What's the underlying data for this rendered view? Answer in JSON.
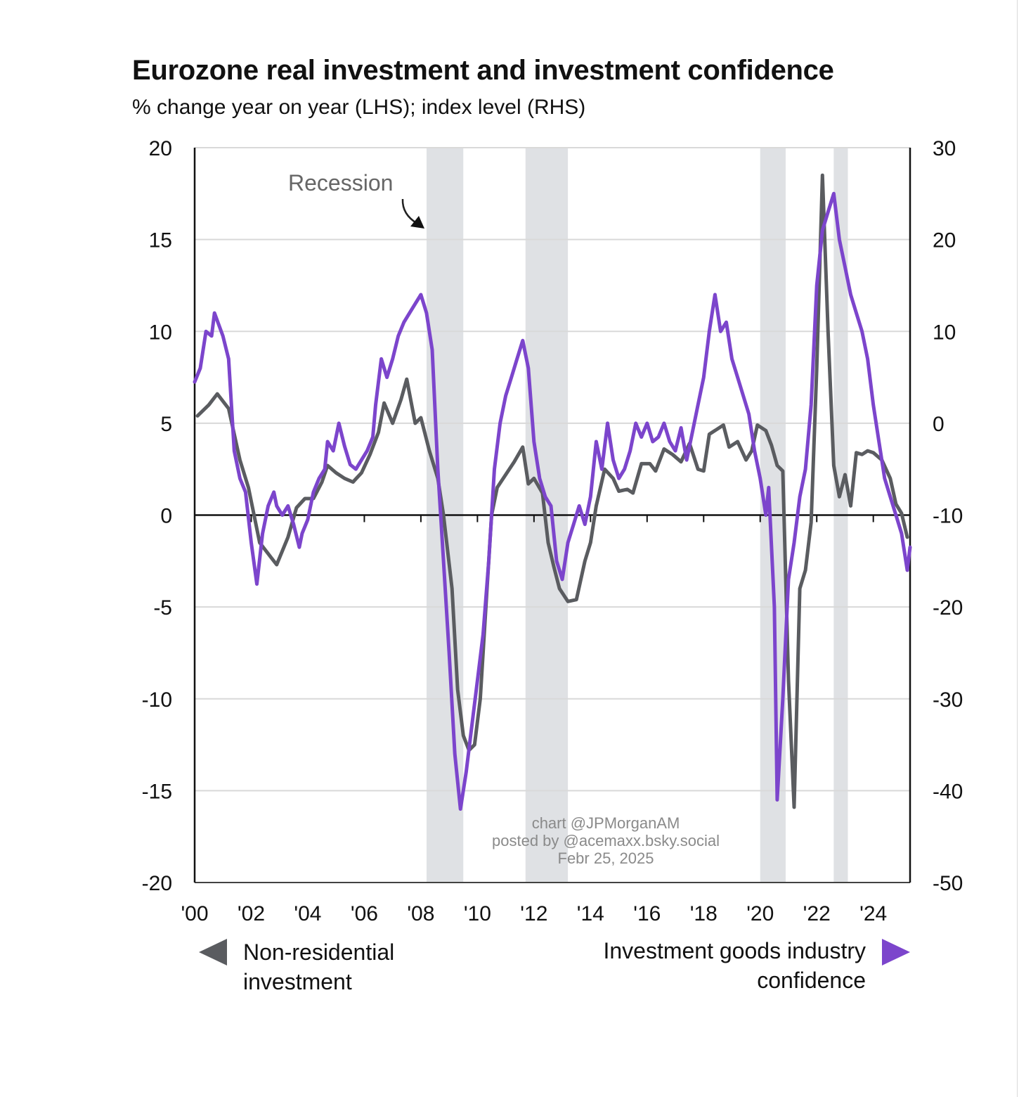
{
  "chart_data": {
    "type": "line",
    "title": "Eurozone real investment and investment confidence",
    "subtitle": "% change year on year (LHS); index level (RHS)",
    "x_axis": {
      "tick_labels": [
        "'00",
        "'02",
        "'04",
        "'06",
        "'08",
        "'10",
        "'12",
        "'14",
        "'16",
        "'18",
        "'20",
        "'22",
        "'24"
      ],
      "tick_years": [
        2000,
        2002,
        2004,
        2006,
        2008,
        2010,
        2012,
        2014,
        2016,
        2018,
        2020,
        2022,
        2024
      ],
      "range": [
        2000,
        2025.3
      ]
    },
    "y_left": {
      "ylim": [
        -20,
        20
      ],
      "ticks": [
        20,
        15,
        10,
        5,
        0,
        -5,
        -10,
        -15,
        -20
      ]
    },
    "y_right": {
      "ylim": [
        -50,
        30
      ],
      "ticks": [
        30,
        20,
        10,
        0,
        -10,
        -20,
        -30,
        -40,
        -50
      ]
    },
    "grid": true,
    "recessions": [
      [
        2008.2,
        2009.5
      ],
      [
        2011.7,
        2013.2
      ],
      [
        2020.0,
        2020.9
      ],
      [
        2022.6,
        2023.1
      ]
    ],
    "recession_label": "Recession",
    "series": [
      {
        "name": "Non-residential investment",
        "axis": "left",
        "color": "#5a5c60",
        "points": [
          [
            2000.1,
            5.4
          ],
          [
            2000.5,
            6.0
          ],
          [
            2000.8,
            6.6
          ],
          [
            2001.2,
            5.8
          ],
          [
            2001.6,
            3.0
          ],
          [
            2001.9,
            1.5
          ],
          [
            2002.3,
            -1.5
          ],
          [
            2002.7,
            -2.3
          ],
          [
            2002.9,
            -2.7
          ],
          [
            2003.3,
            -1.2
          ],
          [
            2003.6,
            0.4
          ],
          [
            2003.9,
            0.9
          ],
          [
            2004.2,
            0.9
          ],
          [
            2004.5,
            1.8
          ],
          [
            2004.7,
            2.7
          ],
          [
            2005.0,
            2.3
          ],
          [
            2005.3,
            2.0
          ],
          [
            2005.6,
            1.8
          ],
          [
            2005.9,
            2.3
          ],
          [
            2006.2,
            3.3
          ],
          [
            2006.5,
            4.5
          ],
          [
            2006.7,
            6.1
          ],
          [
            2007.0,
            5.0
          ],
          [
            2007.3,
            6.3
          ],
          [
            2007.5,
            7.4
          ],
          [
            2007.8,
            5.0
          ],
          [
            2008.0,
            5.3
          ],
          [
            2008.3,
            3.5
          ],
          [
            2008.6,
            2.0
          ],
          [
            2008.8,
            0.0
          ],
          [
            2009.1,
            -4.0
          ],
          [
            2009.3,
            -9.5
          ],
          [
            2009.5,
            -12.0
          ],
          [
            2009.7,
            -12.8
          ],
          [
            2009.9,
            -12.5
          ],
          [
            2010.1,
            -10.0
          ],
          [
            2010.3,
            -5.0
          ],
          [
            2010.5,
            0.0
          ],
          [
            2010.7,
            1.5
          ],
          [
            2011.0,
            2.2
          ],
          [
            2011.3,
            2.9
          ],
          [
            2011.6,
            3.7
          ],
          [
            2011.8,
            1.7
          ],
          [
            2012.0,
            2.0
          ],
          [
            2012.3,
            1.2
          ],
          [
            2012.5,
            -1.5
          ],
          [
            2012.7,
            -2.8
          ],
          [
            2012.9,
            -4.0
          ],
          [
            2013.2,
            -4.7
          ],
          [
            2013.5,
            -4.6
          ],
          [
            2013.8,
            -2.5
          ],
          [
            2014.0,
            -1.5
          ],
          [
            2014.2,
            0.5
          ],
          [
            2014.5,
            2.5
          ],
          [
            2014.8,
            2.0
          ],
          [
            2015.0,
            1.3
          ],
          [
            2015.3,
            1.4
          ],
          [
            2015.5,
            1.2
          ],
          [
            2015.8,
            2.8
          ],
          [
            2016.1,
            2.8
          ],
          [
            2016.3,
            2.4
          ],
          [
            2016.6,
            3.6
          ],
          [
            2016.9,
            3.3
          ],
          [
            2017.2,
            2.9
          ],
          [
            2017.5,
            3.9
          ],
          [
            2017.8,
            2.5
          ],
          [
            2018.0,
            2.4
          ],
          [
            2018.2,
            4.4
          ],
          [
            2018.5,
            4.7
          ],
          [
            2018.7,
            4.9
          ],
          [
            2018.9,
            3.7
          ],
          [
            2019.2,
            4.0
          ],
          [
            2019.5,
            3.0
          ],
          [
            2019.7,
            3.5
          ],
          [
            2019.9,
            4.9
          ],
          [
            2020.2,
            4.6
          ],
          [
            2020.4,
            3.8
          ],
          [
            2020.6,
            2.7
          ],
          [
            2020.8,
            2.4
          ],
          [
            2021.0,
            -9.0
          ],
          [
            2021.2,
            -15.9
          ],
          [
            2021.4,
            -4.0
          ],
          [
            2021.6,
            -3.0
          ],
          [
            2021.8,
            -0.4
          ],
          [
            2022.0,
            8.0
          ],
          [
            2022.2,
            18.5
          ],
          [
            2022.4,
            10.0
          ],
          [
            2022.6,
            2.7
          ],
          [
            2022.8,
            1.0
          ],
          [
            2023.0,
            2.2
          ],
          [
            2023.2,
            0.5
          ],
          [
            2023.4,
            3.4
          ],
          [
            2023.6,
            3.3
          ],
          [
            2023.8,
            3.5
          ],
          [
            2024.0,
            3.4
          ],
          [
            2024.3,
            3.0
          ],
          [
            2024.6,
            2.0
          ],
          [
            2024.8,
            0.6
          ],
          [
            2025.0,
            0.1
          ],
          [
            2025.2,
            -1.2
          ]
        ]
      },
      {
        "name": "Investment goods industry confidence",
        "axis": "right",
        "color": "#7c45cc",
        "points": [
          [
            2000.0,
            4.5
          ],
          [
            2000.2,
            6.0
          ],
          [
            2000.4,
            10.0
          ],
          [
            2000.6,
            9.5
          ],
          [
            2000.7,
            12.0
          ],
          [
            2001.0,
            9.5
          ],
          [
            2001.2,
            7.0
          ],
          [
            2001.4,
            -3.0
          ],
          [
            2001.6,
            -6.0
          ],
          [
            2001.8,
            -7.5
          ],
          [
            2002.0,
            -13.0
          ],
          [
            2002.2,
            -17.5
          ],
          [
            2002.4,
            -12.0
          ],
          [
            2002.6,
            -9.0
          ],
          [
            2002.8,
            -7.5
          ],
          [
            2002.9,
            -9.0
          ],
          [
            2003.1,
            -10.0
          ],
          [
            2003.3,
            -9.0
          ],
          [
            2003.5,
            -11.0
          ],
          [
            2003.7,
            -13.5
          ],
          [
            2003.8,
            -12.0
          ],
          [
            2004.0,
            -10.5
          ],
          [
            2004.2,
            -7.5
          ],
          [
            2004.4,
            -6.0
          ],
          [
            2004.6,
            -5.0
          ],
          [
            2004.7,
            -2.0
          ],
          [
            2004.9,
            -3.0
          ],
          [
            2005.1,
            0.0
          ],
          [
            2005.3,
            -2.5
          ],
          [
            2005.5,
            -4.5
          ],
          [
            2005.7,
            -5.0
          ],
          [
            2005.9,
            -4.0
          ],
          [
            2006.1,
            -3.0
          ],
          [
            2006.3,
            -1.5
          ],
          [
            2006.4,
            2.0
          ],
          [
            2006.6,
            7.0
          ],
          [
            2006.8,
            5.0
          ],
          [
            2007.0,
            7.0
          ],
          [
            2007.2,
            9.5
          ],
          [
            2007.4,
            11.0
          ],
          [
            2007.6,
            12.0
          ],
          [
            2007.8,
            13.0
          ],
          [
            2008.0,
            14.0
          ],
          [
            2008.2,
            12.0
          ],
          [
            2008.4,
            8.0
          ],
          [
            2008.6,
            -5.0
          ],
          [
            2008.8,
            -15.0
          ],
          [
            2009.0,
            -25.0
          ],
          [
            2009.2,
            -36.0
          ],
          [
            2009.4,
            -42.0
          ],
          [
            2009.6,
            -38.0
          ],
          [
            2009.8,
            -33.0
          ],
          [
            2010.0,
            -28.0
          ],
          [
            2010.2,
            -23.0
          ],
          [
            2010.4,
            -15.0
          ],
          [
            2010.6,
            -5.0
          ],
          [
            2010.8,
            0.0
          ],
          [
            2011.0,
            3.0
          ],
          [
            2011.2,
            5.0
          ],
          [
            2011.4,
            7.0
          ],
          [
            2011.6,
            9.0
          ],
          [
            2011.8,
            6.0
          ],
          [
            2012.0,
            -2.0
          ],
          [
            2012.2,
            -6.0
          ],
          [
            2012.4,
            -8.0
          ],
          [
            2012.6,
            -9.0
          ],
          [
            2012.8,
            -15.0
          ],
          [
            2013.0,
            -17.0
          ],
          [
            2013.2,
            -13.0
          ],
          [
            2013.4,
            -11.0
          ],
          [
            2013.6,
            -9.0
          ],
          [
            2013.8,
            -11.0
          ],
          [
            2014.0,
            -8.0
          ],
          [
            2014.2,
            -2.0
          ],
          [
            2014.4,
            -5.0
          ],
          [
            2014.6,
            0.0
          ],
          [
            2014.8,
            -4.0
          ],
          [
            2015.0,
            -6.0
          ],
          [
            2015.2,
            -5.0
          ],
          [
            2015.4,
            -3.0
          ],
          [
            2015.6,
            0.0
          ],
          [
            2015.8,
            -1.5
          ],
          [
            2016.0,
            0.0
          ],
          [
            2016.2,
            -2.0
          ],
          [
            2016.4,
            -1.5
          ],
          [
            2016.6,
            0.0
          ],
          [
            2016.8,
            -2.0
          ],
          [
            2017.0,
            -3.0
          ],
          [
            2017.2,
            -0.5
          ],
          [
            2017.4,
            -4.0
          ],
          [
            2017.6,
            -1.0
          ],
          [
            2017.8,
            2.0
          ],
          [
            2018.0,
            5.0
          ],
          [
            2018.2,
            10.0
          ],
          [
            2018.4,
            14.0
          ],
          [
            2018.6,
            10.0
          ],
          [
            2018.8,
            11.0
          ],
          [
            2019.0,
            7.0
          ],
          [
            2019.2,
            5.0
          ],
          [
            2019.4,
            3.0
          ],
          [
            2019.6,
            1.0
          ],
          [
            2019.8,
            -3.0
          ],
          [
            2020.0,
            -6.0
          ],
          [
            2020.2,
            -10.0
          ],
          [
            2020.3,
            -7.0
          ],
          [
            2020.5,
            -20.0
          ],
          [
            2020.6,
            -41.0
          ],
          [
            2020.8,
            -30.0
          ],
          [
            2021.0,
            -17.0
          ],
          [
            2021.2,
            -13.0
          ],
          [
            2021.4,
            -8.0
          ],
          [
            2021.6,
            -5.0
          ],
          [
            2021.8,
            2.0
          ],
          [
            2022.0,
            15.0
          ],
          [
            2022.2,
            21.0
          ],
          [
            2022.4,
            23.0
          ],
          [
            2022.6,
            25.0
          ],
          [
            2022.8,
            20.0
          ],
          [
            2023.0,
            17.0
          ],
          [
            2023.2,
            14.0
          ],
          [
            2023.4,
            12.0
          ],
          [
            2023.6,
            10.0
          ],
          [
            2023.8,
            7.0
          ],
          [
            2024.0,
            2.0
          ],
          [
            2024.2,
            -2.0
          ],
          [
            2024.4,
            -6.0
          ],
          [
            2024.6,
            -8.0
          ],
          [
            2024.8,
            -10.0
          ],
          [
            2025.0,
            -12.0
          ],
          [
            2025.2,
            -16.0
          ],
          [
            2025.3,
            -13.5
          ]
        ]
      }
    ],
    "legend": {
      "left": {
        "line1": "Non-residential",
        "line2": "investment"
      },
      "right": {
        "line1": "Investment goods industry",
        "line2": "confidence"
      }
    }
  },
  "credits": {
    "line1": "chart @JPMorganAM",
    "line2": "posted by @acemaxx.bsky.social",
    "line3": "Febr 25, 2025"
  }
}
